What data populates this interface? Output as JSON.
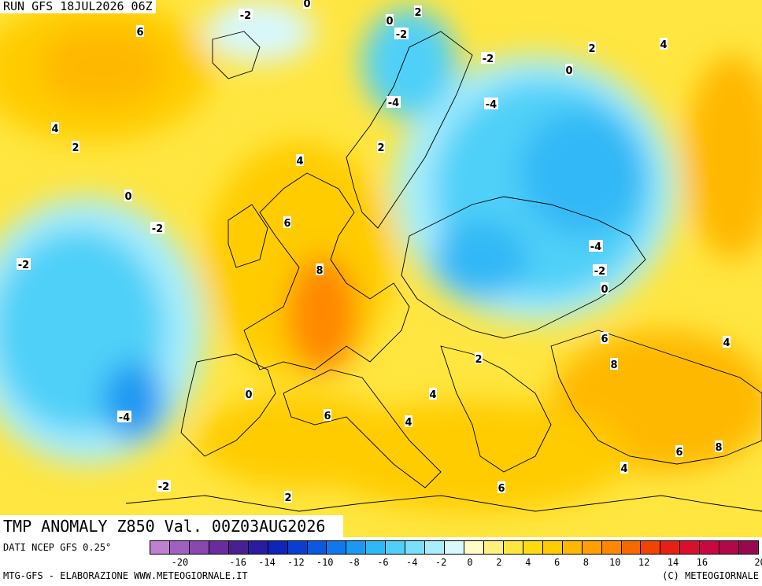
{
  "header": {
    "run_label": "RUN GFS 18JUL2026 06Z",
    "title": "TMP ANOMALY Z850 Val. 00Z03AUG2026"
  },
  "footer": {
    "source": "DATI NCEP GFS 0.25°",
    "credit_left": "MTG-GFS - ELABORAZIONE WWW.METEOGIORNALE.IT",
    "credit_right": "(C) METEOGIORNALE"
  },
  "legend": {
    "colors": [
      "#c080d0",
      "#a060c0",
      "#8848b0",
      "#6a2c9c",
      "#4a2090",
      "#2a1ca0",
      "#1024b8",
      "#0a3ed0",
      "#0a5ae0",
      "#1078ec",
      "#1a98f2",
      "#30b8f6",
      "#50d0f8",
      "#78e0fa",
      "#a8eefc",
      "#d8f8fe",
      "#fffcc8",
      "#fff080",
      "#ffe640",
      "#ffdc10",
      "#ffcc00",
      "#ffb800",
      "#ffa000",
      "#ff8800",
      "#f86800",
      "#f04400",
      "#e82010",
      "#d81030",
      "#c80840",
      "#b00848",
      "#980850"
    ],
    "ticks": [
      "-20",
      "-18",
      "-16",
      "-14",
      "-12",
      "-10",
      "-8",
      "-6",
      "-4",
      "-2",
      "0",
      "2",
      "4",
      "6",
      "8",
      "10",
      "12",
      "14",
      "16",
      "18",
      "20"
    ],
    "tick_labels": [
      "-20",
      "-16",
      "-14",
      "-12",
      "-10",
      "-8",
      "-6",
      "-4",
      "-2",
      "0",
      "2",
      "4",
      "6",
      "8",
      "10",
      "12",
      "14",
      "16",
      "20"
    ]
  },
  "map_labels": [
    {
      "text": "4"
    },
    {
      "text": "6"
    },
    {
      "text": "-2"
    },
    {
      "text": "0"
    },
    {
      "text": "2"
    },
    {
      "text": "0"
    },
    {
      "text": "-2"
    },
    {
      "text": "-2"
    },
    {
      "text": "2"
    },
    {
      "text": "0"
    },
    {
      "text": "-4"
    },
    {
      "text": "-4"
    },
    {
      "text": "4"
    },
    {
      "text": "2"
    },
    {
      "text": "2"
    },
    {
      "text": "4"
    },
    {
      "text": "0"
    },
    {
      "text": "-2"
    },
    {
      "text": "6"
    },
    {
      "text": "-2"
    },
    {
      "text": "8"
    },
    {
      "text": "-4"
    },
    {
      "text": "-2"
    },
    {
      "text": "0"
    },
    {
      "text": "6"
    },
    {
      "text": "4"
    },
    {
      "text": "8"
    },
    {
      "text": "2"
    },
    {
      "text": "0"
    },
    {
      "text": "4"
    },
    {
      "text": "-4"
    },
    {
      "text": "6"
    },
    {
      "text": "4"
    },
    {
      "text": "6"
    },
    {
      "text": "8"
    },
    {
      "text": "-2"
    },
    {
      "text": "4"
    },
    {
      "text": "2"
    },
    {
      "text": "6"
    }
  ]
}
